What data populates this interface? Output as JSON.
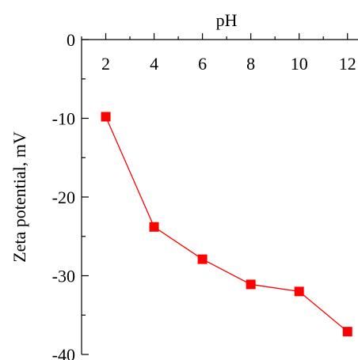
{
  "chart_data": {
    "type": "line",
    "xlabel": "pH",
    "ylabel": "Zeta potential, mV",
    "xlim": [
      1,
      12.5
    ],
    "ylim": [
      -40,
      0
    ],
    "x_ticks": [
      2,
      4,
      6,
      8,
      10,
      12
    ],
    "x_tick_labels": [
      "2",
      "4",
      "6",
      "8",
      "10",
      "12"
    ],
    "y_ticks": [
      0,
      -10,
      -20,
      -30,
      -40
    ],
    "y_tick_labels": [
      "0",
      "-10",
      "-20",
      "-30",
      "-40"
    ],
    "x_axis_position": "top",
    "grid": false,
    "series": [
      {
        "color": "#ff0000",
        "marker": "square",
        "x": [
          2,
          4,
          6,
          8,
          10,
          12
        ],
        "y": [
          -9.8,
          -23.8,
          -27.9,
          -31.1,
          -32.0,
          -37.1
        ]
      }
    ]
  }
}
